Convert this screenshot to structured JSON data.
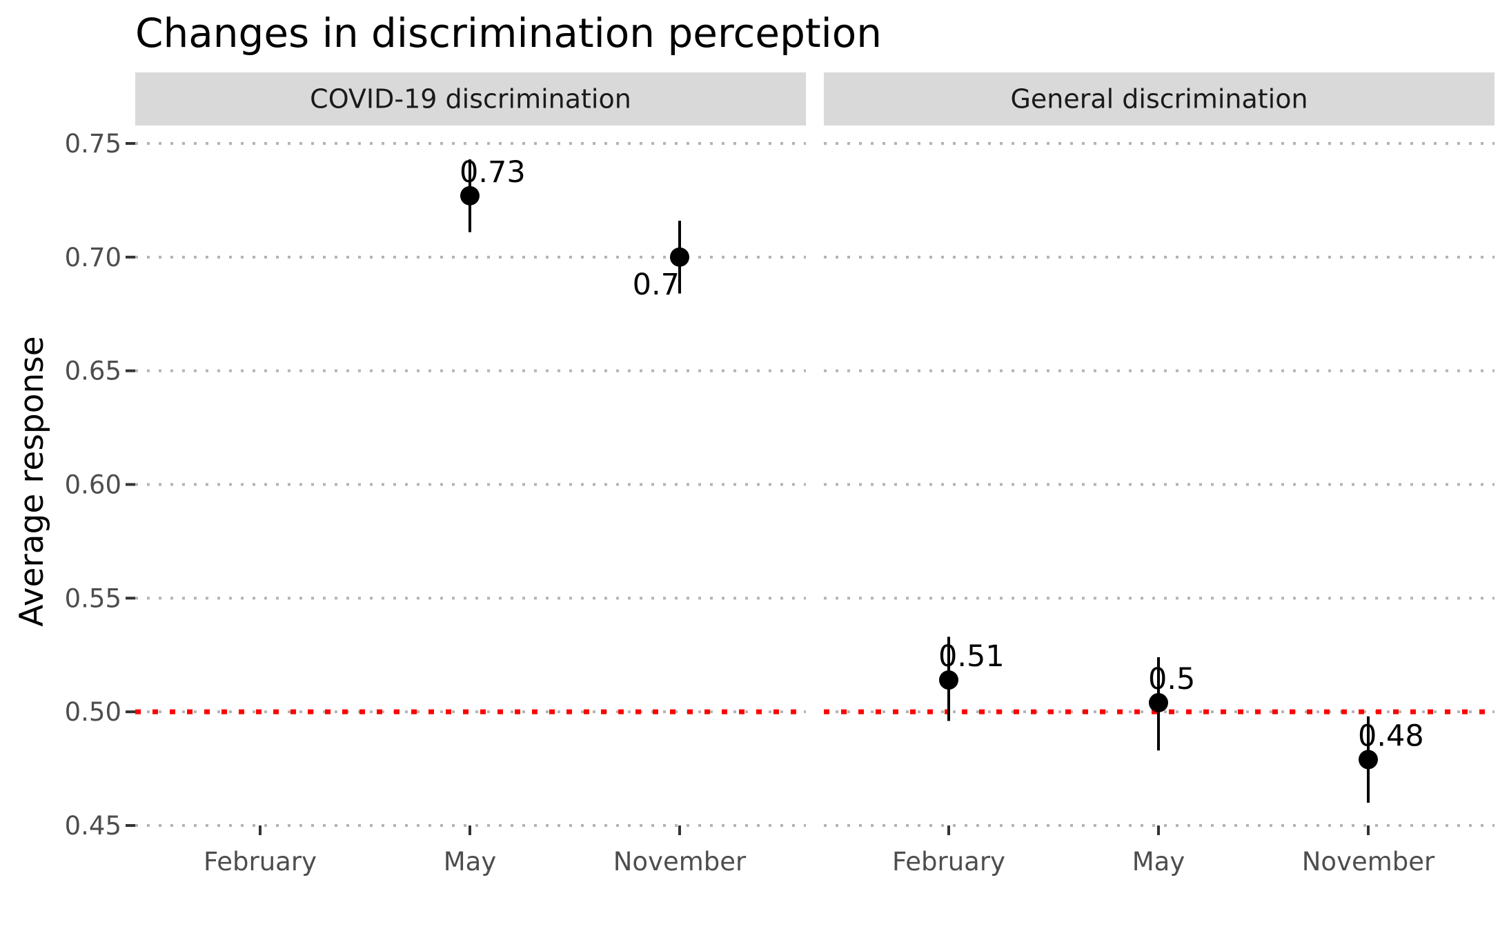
{
  "chart_data": {
    "type": "scatter",
    "title": "Changes in discrimination perception",
    "ylabel": "Average response",
    "xlabel": "",
    "ylim": [
      0.45,
      0.75
    ],
    "yticks": [
      "0.45",
      "0.50",
      "0.55",
      "0.60",
      "0.65",
      "0.70",
      "0.75"
    ],
    "ytick_values": [
      0.45,
      0.5,
      0.55,
      0.6,
      0.65,
      0.7,
      0.75
    ],
    "categories": [
      "February",
      "May",
      "November"
    ],
    "grid": "horizontal dotted",
    "reference_line": {
      "y": 0.5,
      "color": "#ff0000",
      "style": "dotted"
    },
    "facets": [
      {
        "name": "COVID-19 discrimination",
        "points": [
          {
            "x": "May",
            "y": 0.727,
            "ymin": 0.711,
            "ymax": 0.743,
            "label": "0.73",
            "label_pos": "above"
          },
          {
            "x": "November",
            "y": 0.7,
            "ymin": 0.684,
            "ymax": 0.716,
            "label": "0.7",
            "label_pos": "below"
          }
        ]
      },
      {
        "name": "General discrimination",
        "points": [
          {
            "x": "February",
            "y": 0.514,
            "ymin": 0.496,
            "ymax": 0.533,
            "label": "0.51",
            "label_pos": "above"
          },
          {
            "x": "May",
            "y": 0.504,
            "ymin": 0.483,
            "ymax": 0.524,
            "label": "0.5",
            "label_pos": "above"
          },
          {
            "x": "November",
            "y": 0.479,
            "ymin": 0.46,
            "ymax": 0.498,
            "label": "0.48",
            "label_pos": "above"
          }
        ]
      }
    ]
  }
}
